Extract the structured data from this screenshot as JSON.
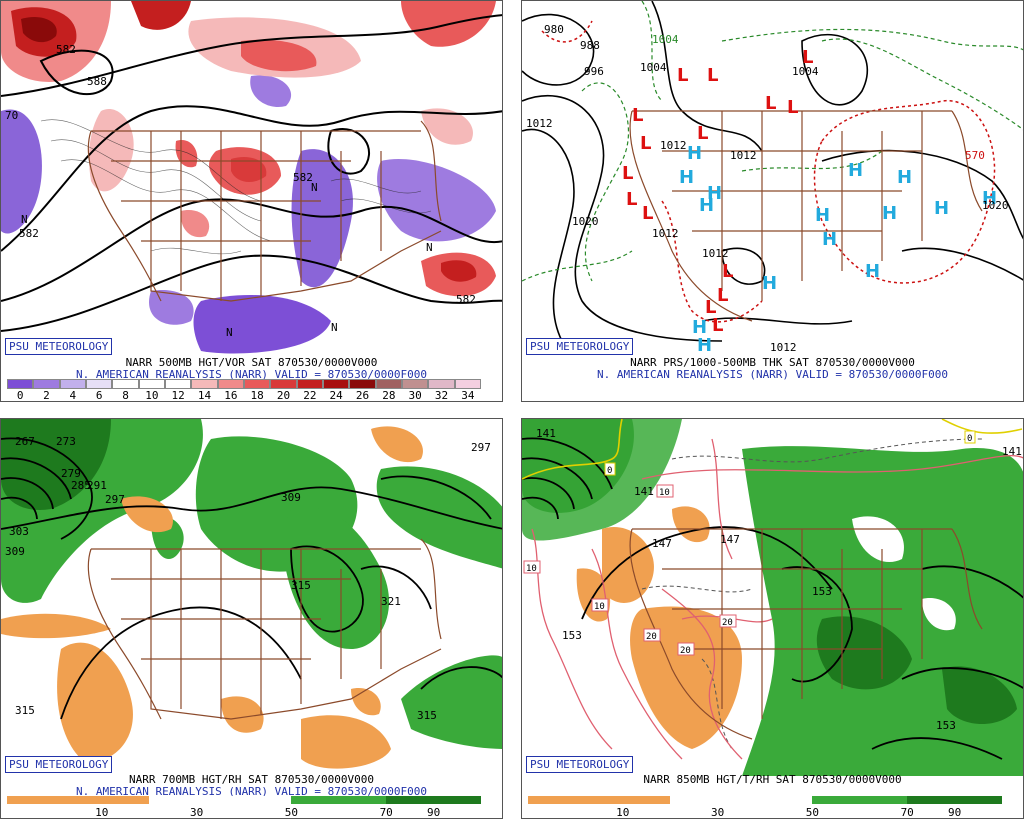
{
  "branding": "PSU METEOROLOGY",
  "panels": [
    {
      "id": "vort",
      "caption_line1": "NARR 500MB HGT/VOR SAT 870530/0000V000",
      "caption_line2": "N. AMERICAN REANALYSIS (NARR) VALID = 870530/0000F000",
      "colorbar_ticks": [
        "0",
        "2",
        "4",
        "6",
        "8",
        "10",
        "12",
        "14",
        "16",
        "18",
        "20",
        "22",
        "24",
        "26",
        "28",
        "30",
        "32",
        "34"
      ],
      "colorbar_colors": [
        "#7d4fd6",
        "#9e7be0",
        "#c2b0ec",
        "#e6dff7",
        "#ffffff",
        "#ffffff",
        "#ffffff",
        "#f5b9b9",
        "#f08a8a",
        "#e85a5a",
        "#d93a3a",
        "#c41f1f",
        "#a80f0f",
        "#8a0a0a",
        "#a06060",
        "#c09090",
        "#e0b8c8",
        "#f4cfe0"
      ],
      "labels": [
        "582",
        "582",
        "588",
        "70",
        "582",
        "582",
        "N",
        "N",
        "N",
        "N",
        "N"
      ]
    },
    {
      "id": "thk",
      "caption_line1": "NARR PRS/1000-500MB THK SAT 870530/0000V000",
      "caption_line2": "N. AMERICAN REANALYSIS (NARR) VALID = 870530/0000F000",
      "labels": [
        "980",
        "988",
        "996",
        "1004",
        "1004",
        "1012",
        "1012",
        "1012",
        "1020",
        "1020",
        "1012",
        "1012",
        "1012",
        "570",
        "1004"
      ]
    },
    {
      "id": "rh700",
      "caption_line1": "NARR 700MB HGT/RH SAT 870530/0000V000",
      "caption_line2": "N. AMERICAN REANALYSIS (NARR) VALID = 870530/0000F000",
      "colorbar_ticks": [
        "10",
        "30",
        "50",
        "70",
        "90"
      ],
      "labels": [
        "267",
        "273",
        "279",
        "285",
        "291",
        "297",
        "303",
        "309",
        "309",
        "315",
        "315",
        "321",
        "297",
        "315"
      ]
    },
    {
      "id": "t850",
      "caption_line1": "NARR 850MB HGT/T/RH SAT 870530/0000V000",
      "caption_line2": "",
      "colorbar_ticks": [
        "10",
        "30",
        "50",
        "70",
        "90"
      ],
      "labels": [
        "141",
        "141",
        "147",
        "147",
        "153",
        "153",
        "153",
        "0",
        "0",
        "10",
        "10",
        "10",
        "20",
        "20",
        "20",
        "141"
      ]
    }
  ],
  "colors": {
    "border": "#8b4a2b",
    "badge": "#2233aa",
    "low": "#dd1111",
    "high": "#22aadd",
    "green": "#2a9a2a",
    "orange": "#f0a050"
  }
}
